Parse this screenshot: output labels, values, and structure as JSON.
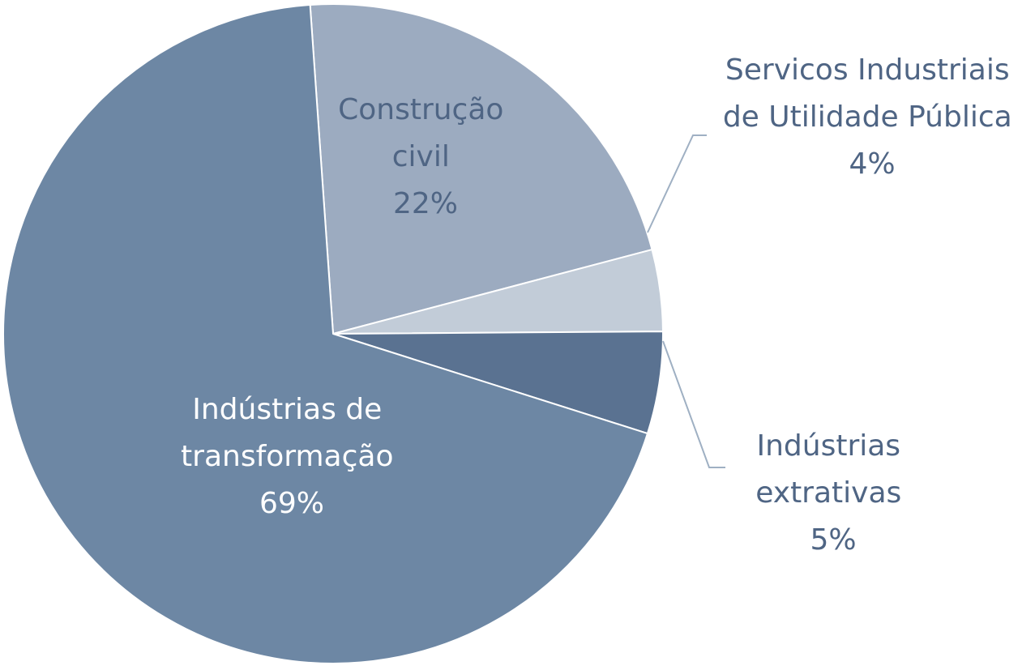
{
  "chart_data": {
    "type": "pie",
    "start_angle_deg": -94,
    "direction": "clockwise",
    "slices": [
      {
        "key": "construcao",
        "label_lines": [
          "Construção",
          "civil"
        ],
        "percent_label": "22%",
        "value": 22,
        "color": "#9cabc0",
        "label_color": "#4f6584",
        "label_inside": true
      },
      {
        "key": "servicos",
        "label_lines": [
          "Servicos Industriais",
          "de Utilidade Pública"
        ],
        "percent_label": "4%",
        "value": 4,
        "color": "#c2ccd8",
        "label_color": "#4f6584",
        "label_inside": false
      },
      {
        "key": "extrativas",
        "label_lines": [
          "Indústrias",
          "extrativas"
        ],
        "percent_label": "5%",
        "value": 5,
        "color": "#5a7291",
        "label_color": "#4f6584",
        "label_inside": false
      },
      {
        "key": "transformacao",
        "label_lines": [
          "Indústrias de",
          "transformação"
        ],
        "percent_label": "69%",
        "value": 69,
        "color": "#6d87a4",
        "label_color": "#ffffff",
        "label_inside": true
      }
    ]
  }
}
